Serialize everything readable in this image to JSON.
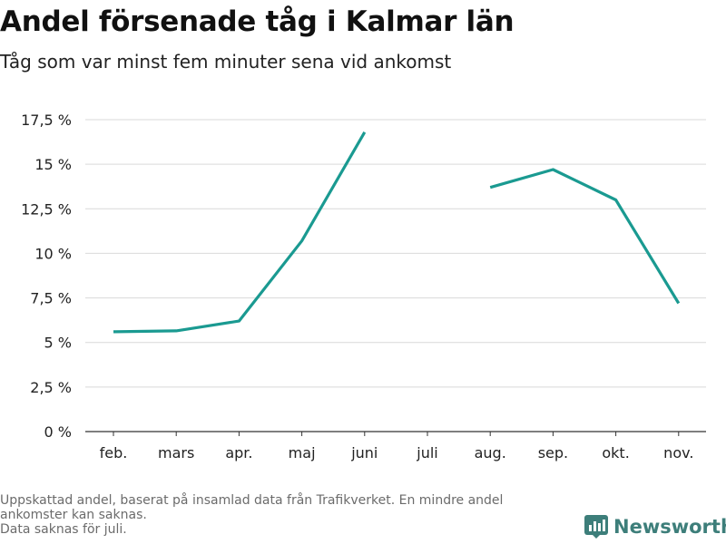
{
  "title": "Andel försenade tåg i Kalmar län",
  "subtitle": "Tåg som var minst fem minuter sena vid ankomst",
  "footnote": {
    "line1": "Uppskattad andel, baserat på insamlad data från Trafikverket. En mindre andel ankomster kan saknas.",
    "line2": "Data saknas för juli."
  },
  "brand": {
    "name": "Newsworthy",
    "icon": "bar-chart-logo-icon",
    "color": "#3d7e7a"
  },
  "colors": {
    "line": "#1a9a91",
    "grid": "#d9d9d9",
    "axis": "#333333"
  },
  "chart_data": {
    "type": "line",
    "title": "Andel försenade tåg i Kalmar län",
    "subtitle": "Tåg som var minst fem minuter sena vid ankomst",
    "categories": [
      "feb.",
      "mars",
      "apr.",
      "maj",
      "juni",
      "juli",
      "aug.",
      "sep.",
      "okt.",
      "nov."
    ],
    "series": [
      {
        "values": [
          5.6,
          5.65,
          6.2,
          10.7,
          16.8,
          null,
          13.7,
          14.7,
          13.0,
          7.2
        ]
      }
    ],
    "ylim": [
      0,
      17.5
    ],
    "yticks": [
      {
        "value": 0,
        "label": "0 %"
      },
      {
        "value": 2.5,
        "label": "2,5 %"
      },
      {
        "value": 5,
        "label": "5 %"
      },
      {
        "value": 7.5,
        "label": "7,5 %"
      },
      {
        "value": 10,
        "label": "10 %"
      },
      {
        "value": 12.5,
        "label": "12,5 %"
      },
      {
        "value": 15,
        "label": "15 %"
      },
      {
        "value": 17.5,
        "label": "17,5 %"
      }
    ],
    "grid": true,
    "legend": "none"
  }
}
